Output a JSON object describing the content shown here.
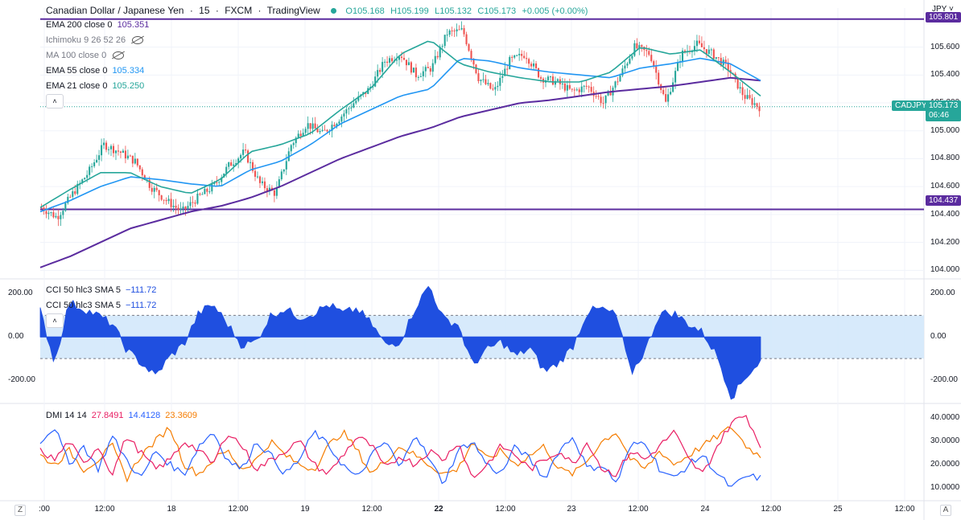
{
  "header": {
    "symbol": "Canadian Dollar / Japanese Yen",
    "interval": "15",
    "exchange": "FXCM",
    "source": "TradingView",
    "open": "O105.168",
    "high": "H105.199",
    "low": "L105.132",
    "close": "C105.173",
    "change": "+0.005 (+0.00%)"
  },
  "currency": "JPY",
  "indicators": {
    "ema200": {
      "label": "EMA 200 close 0",
      "value": "105.351"
    },
    "ichimoku": {
      "label": "Ichimoku 9 26 52 26"
    },
    "ma100": {
      "label": "MA 100 close 0"
    },
    "ema55": {
      "label": "EMA 55 close 0",
      "value": "105.334"
    },
    "ema21": {
      "label": "EMA 21 close 0",
      "value": "105.250"
    },
    "cci1": {
      "label": "CCI 50 hlc3 SMA 5",
      "value": "−111.72"
    },
    "cci2": {
      "label": "CCI 50 hlc3 SMA 5",
      "value": "−111.72"
    },
    "dmi": {
      "label": "DMI 14 14",
      "v1": "27.8491",
      "v2": "14.4128",
      "v3": "23.3609"
    }
  },
  "price_tags": {
    "top_line": "105.801",
    "bottom_line": "104.437",
    "symbol_tag": "CADJPY",
    "last_price": "105.173",
    "countdown": "06:46"
  },
  "price_axis": [
    "105.800",
    "105.600",
    "105.400",
    "105.200",
    "105.000",
    "104.800",
    "104.600",
    "104.400",
    "104.200",
    "104.000"
  ],
  "cci_axis": [
    "200.00",
    "0.00",
    "-200.00"
  ],
  "dmi_axis": [
    "40.0000",
    "30.0000",
    "20.0000",
    "10.0000"
  ],
  "time_axis": [
    ":00",
    "12:00",
    "18",
    "12:00",
    "19",
    "12:00",
    "22",
    "12:00",
    "23",
    "12:00",
    "24",
    "12:00",
    "25",
    "12:00"
  ],
  "time_axis_bold": [
    false,
    false,
    false,
    false,
    false,
    false,
    true,
    false,
    false,
    false,
    false,
    false,
    false,
    false
  ],
  "corner_left": "Z",
  "corner_right": "A",
  "colors": {
    "up": "#26a69a",
    "down": "#ef5350",
    "ema200": "#5b2c9f",
    "ema55": "#2196f3",
    "ema21": "#26a69a",
    "hline": "#5b2c9f",
    "cci_fill": "#1f4fe0",
    "cci_band": "#d3e8fb",
    "dmi_plus": "#e91e63",
    "dmi_minus": "#2962ff",
    "adx": "#f57c00"
  },
  "chart_data": {
    "type": "line",
    "title": "Canadian Dollar / Japanese Yen · 15 · FXCM",
    "x": [
      ":00",
      "12:00",
      "18",
      "12:00",
      "19",
      "12:00",
      "22",
      "12:00",
      "23",
      "12:00",
      "24",
      "12:00",
      "25",
      "12:00"
    ],
    "ylim": [
      103.95,
      105.88
    ],
    "horizontal_lines": [
      105.801,
      104.437
    ],
    "last_price": 105.173,
    "price_path": [
      104.45,
      104.38,
      104.55,
      104.7,
      104.9,
      104.85,
      104.78,
      104.6,
      104.5,
      104.42,
      104.52,
      104.6,
      104.75,
      104.85,
      104.62,
      104.55,
      104.9,
      105.05,
      104.98,
      105.08,
      105.2,
      105.3,
      105.5,
      105.55,
      105.4,
      105.45,
      105.7,
      105.72,
      105.38,
      105.28,
      105.5,
      105.55,
      105.38,
      105.35,
      105.28,
      105.32,
      105.2,
      105.38,
      105.6,
      105.55,
      105.2,
      105.55,
      105.62,
      105.55,
      105.45,
      105.25,
      105.17
    ],
    "ema200_path": [
      104.02,
      104.1,
      104.2,
      104.3,
      104.36,
      104.42,
      104.46,
      104.52,
      104.6,
      104.7,
      104.8,
      104.88,
      104.96,
      105.02,
      105.1,
      105.15,
      105.2,
      105.22,
      105.25,
      105.28,
      105.3,
      105.32,
      105.35,
      105.38,
      105.36
    ],
    "ema55_path": [
      104.42,
      104.5,
      104.6,
      104.67,
      104.65,
      104.62,
      104.6,
      104.72,
      104.78,
      104.9,
      105.05,
      105.15,
      105.25,
      105.3,
      105.52,
      105.5,
      105.45,
      105.42,
      105.4,
      105.38,
      105.45,
      105.48,
      105.52,
      105.48,
      105.36
    ],
    "ema21_path": [
      104.45,
      104.58,
      104.7,
      104.7,
      104.6,
      104.55,
      104.65,
      104.85,
      104.9,
      104.98,
      105.15,
      105.3,
      105.55,
      105.65,
      105.48,
      105.42,
      105.38,
      105.35,
      105.35,
      105.42,
      105.6,
      105.55,
      105.58,
      105.42,
      105.25
    ],
    "cci": {
      "ylim": [
        -300,
        250
      ],
      "band": [
        100,
        -100
      ],
      "values": [
        120,
        -120,
        160,
        130,
        100,
        60,
        -60,
        -120,
        -180,
        -90,
        -30,
        110,
        150,
        60,
        -40,
        -20,
        100,
        130,
        90,
        110,
        150,
        110,
        130,
        60,
        -40,
        -20,
        130,
        240,
        80,
        60,
        -130,
        -60,
        -20,
        -90,
        -50,
        -160,
        -120,
        -40,
        120,
        130,
        100,
        -170,
        -60,
        110,
        110,
        60,
        20,
        -90,
        -280,
        -180,
        -112
      ],
      "axis": [
        "200.00",
        "0.00",
        "-200.00"
      ]
    },
    "dmi": {
      "ylim": [
        5,
        45
      ],
      "plus_di": [
        26,
        22,
        30,
        20,
        28,
        16,
        32,
        25,
        18,
        22,
        30,
        26,
        20,
        34,
        28,
        18,
        22,
        26,
        30,
        20,
        16,
        24,
        32,
        28,
        18,
        24,
        20,
        26,
        22,
        30,
        14,
        20,
        28,
        24,
        18,
        22,
        26,
        20,
        30,
        18,
        16,
        26,
        22,
        28,
        34,
        22,
        16,
        28,
        38,
        41,
        27.8
      ],
      "minus_di": [
        30,
        36,
        20,
        28,
        18,
        32,
        22,
        14,
        26,
        20,
        16,
        28,
        34,
        22,
        18,
        30,
        24,
        16,
        22,
        34,
        28,
        20,
        14,
        24,
        30,
        18,
        34,
        22,
        12,
        26,
        30,
        20,
        16,
        28,
        22,
        14,
        26,
        32,
        18,
        20,
        12,
        28,
        30,
        18,
        14,
        20,
        24,
        16,
        10,
        15,
        14.4
      ],
      "adx": [
        24,
        20,
        26,
        18,
        22,
        28,
        14,
        24,
        30,
        36,
        20,
        16,
        22,
        26,
        18,
        22,
        30,
        24,
        20,
        18,
        28,
        34,
        26,
        16,
        22,
        28,
        24,
        20,
        16,
        18,
        30,
        22,
        26,
        20,
        24,
        28,
        18,
        16,
        22,
        30,
        34,
        22,
        18,
        26,
        20,
        24,
        28,
        32,
        36,
        28,
        23.4
      ],
      "axis": [
        "40.0000",
        "30.0000",
        "20.0000",
        "10.0000"
      ]
    }
  }
}
